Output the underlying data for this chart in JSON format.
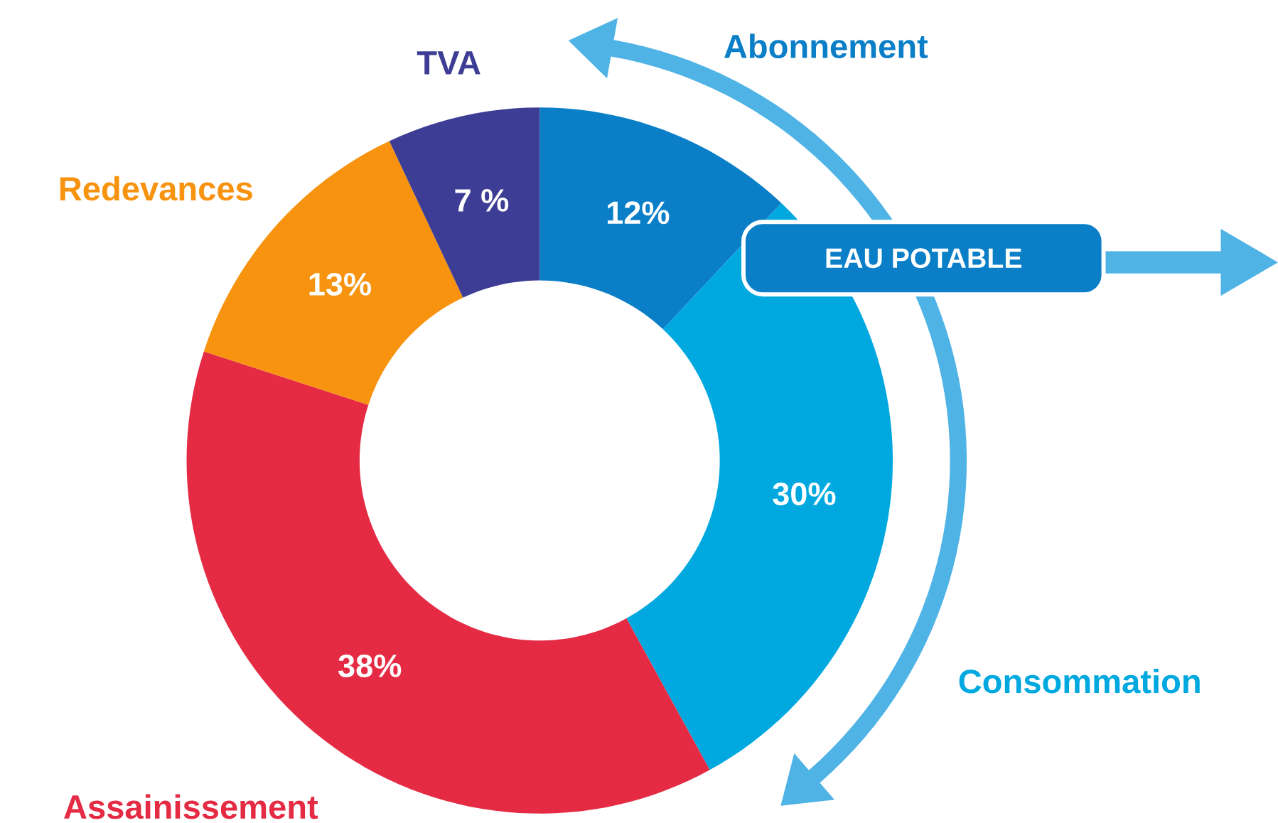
{
  "chart_data": {
    "type": "donut",
    "categories": [
      "Abonnement",
      "Consommation",
      "Assainissement",
      "Redevances",
      "TVA"
    ],
    "values": [
      12,
      30,
      38,
      13,
      7
    ],
    "colors": [
      "#0a7fc8",
      "#00a8e0",
      "#e52b44",
      "#f7930f",
      "#3d3d96"
    ],
    "value_labels": [
      "12%",
      "30%",
      "38%",
      "13%",
      "7 %"
    ],
    "annotations": [
      "EAU POTABLE"
    ]
  }
}
